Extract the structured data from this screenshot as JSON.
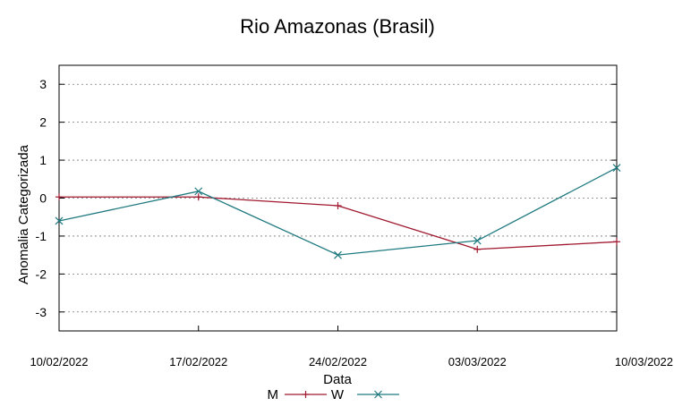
{
  "chart_data": {
    "type": "line",
    "title": "Rio Amazonas (Brasil)",
    "xlabel": "Data",
    "ylabel": "Anomalia Categorizada",
    "categories": [
      "10/02/2022",
      "17/02/2022",
      "24/02/2022",
      "03/03/2022",
      "10/03/2022"
    ],
    "yticks": [
      "3",
      "2",
      "1",
      "0",
      "-1",
      "-2",
      "-3"
    ],
    "ylim": [
      -3.5,
      3.5
    ],
    "grid": true,
    "legend_position": "bottom",
    "series": [
      {
        "name": "M",
        "marker": "+",
        "color": "#a0192f",
        "values": [
          0.03,
          0.03,
          -0.2,
          -1.35,
          -1.15
        ]
      },
      {
        "name": "W",
        "marker": "x",
        "color": "#1f7a80",
        "values": [
          -0.6,
          0.18,
          -1.5,
          -1.12,
          0.8
        ]
      }
    ]
  }
}
